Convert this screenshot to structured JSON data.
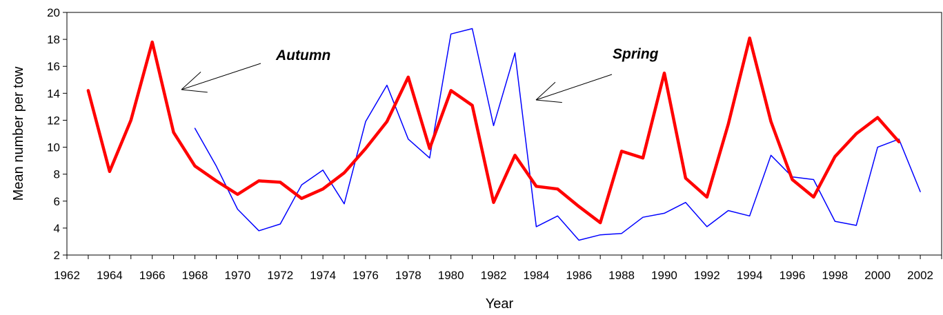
{
  "chart_data": {
    "type": "line",
    "xlabel": "Year",
    "ylabel": "Mean number per tow",
    "xlim": [
      1962,
      2003
    ],
    "ylim": [
      2,
      20
    ],
    "x_ticks": [
      "1962",
      "1964",
      "1966",
      "1968",
      "1970",
      "1972",
      "1974",
      "1976",
      "1978",
      "1980",
      "1982",
      "1984",
      "1986",
      "1988",
      "1990",
      "1992",
      "1994",
      "1996",
      "1998",
      "2000",
      "2002"
    ],
    "y_ticks": [
      "2",
      "4",
      "6",
      "8",
      "10",
      "12",
      "14",
      "16",
      "18",
      "20"
    ],
    "grid": false,
    "legend": "none",
    "annotations": [
      {
        "text": "Autumn",
        "series": "Autumn"
      },
      {
        "text": "Spring",
        "series": "Spring"
      }
    ],
    "series": [
      {
        "name": "Autumn",
        "color": "#ff0000",
        "points": [
          [
            1963,
            14.2
          ],
          [
            1964,
            8.2
          ],
          [
            1965,
            12.0
          ],
          [
            1966,
            17.8
          ],
          [
            1967,
            11.1
          ],
          [
            1968,
            8.6
          ],
          [
            1969,
            7.5
          ],
          [
            1970,
            6.5
          ],
          [
            1971,
            7.5
          ],
          [
            1972,
            7.4
          ],
          [
            1973,
            6.2
          ],
          [
            1974,
            6.9
          ],
          [
            1975,
            8.1
          ],
          [
            1976,
            9.9
          ],
          [
            1977,
            11.9
          ],
          [
            1978,
            15.2
          ],
          [
            1979,
            9.9
          ],
          [
            1980,
            14.2
          ],
          [
            1981,
            13.1
          ],
          [
            1982,
            5.9
          ],
          [
            1983,
            9.4
          ],
          [
            1984,
            7.1
          ],
          [
            1985,
            6.9
          ],
          [
            1986,
            5.6
          ],
          [
            1987,
            4.4
          ],
          [
            1988,
            9.7
          ],
          [
            1989,
            9.2
          ],
          [
            1990,
            15.5
          ],
          [
            1991,
            7.7
          ],
          [
            1992,
            6.3
          ],
          [
            1993,
            11.7
          ],
          [
            1994,
            18.1
          ],
          [
            1995,
            11.9
          ],
          [
            1996,
            7.6
          ],
          [
            1997,
            6.3
          ],
          [
            1998,
            9.3
          ],
          [
            1999,
            11.0
          ],
          [
            2000,
            12.2
          ],
          [
            2001,
            10.4
          ]
        ]
      },
      {
        "name": "Spring",
        "color": "#0000ff",
        "points": [
          [
            1968,
            11.4
          ],
          [
            1969,
            8.6
          ],
          [
            1970,
            5.4
          ],
          [
            1971,
            3.8
          ],
          [
            1972,
            4.3
          ],
          [
            1973,
            7.2
          ],
          [
            1974,
            8.3
          ],
          [
            1975,
            5.8
          ],
          [
            1976,
            11.9
          ],
          [
            1977,
            14.6
          ],
          [
            1978,
            10.6
          ],
          [
            1979,
            9.2
          ],
          [
            1980,
            18.4
          ],
          [
            1981,
            18.8
          ],
          [
            1982,
            11.6
          ],
          [
            1983,
            17.0
          ],
          [
            1984,
            4.1
          ],
          [
            1985,
            4.9
          ],
          [
            1986,
            3.1
          ],
          [
            1987,
            3.5
          ],
          [
            1988,
            3.6
          ],
          [
            1989,
            4.8
          ],
          [
            1990,
            5.1
          ],
          [
            1991,
            5.9
          ],
          [
            1992,
            4.1
          ],
          [
            1993,
            5.3
          ],
          [
            1994,
            4.9
          ],
          [
            1995,
            9.4
          ],
          [
            1996,
            7.8
          ],
          [
            1997,
            7.6
          ],
          [
            1998,
            4.5
          ],
          [
            1999,
            4.2
          ],
          [
            2000,
            10.0
          ],
          [
            2001,
            10.6
          ],
          [
            2002,
            6.7
          ]
        ]
      }
    ]
  }
}
